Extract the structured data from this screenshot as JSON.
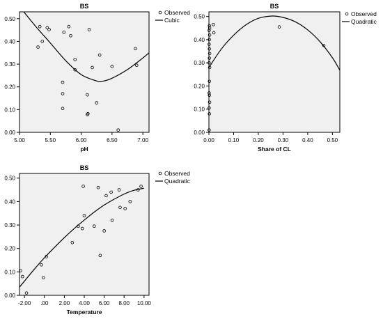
{
  "chart_data": [
    {
      "type": "scatter",
      "title": "BS",
      "xlabel": "pH",
      "ylabel": "",
      "xlim": [
        5.0,
        7.1
      ],
      "ylim": [
        0.0,
        0.53
      ],
      "xticks": [
        "5.00",
        "5.50",
        "6.00",
        "6.50",
        "7.00"
      ],
      "yticks": [
        "0.00",
        "0.10",
        "0.20",
        "0.30",
        "0.40",
        "0.50"
      ],
      "legend": {
        "position": "right",
        "entries": [
          "Observed",
          "Cubic"
        ]
      },
      "fit": {
        "name": "Cubic",
        "points": [
          [
            5.07,
            0.53
          ],
          [
            5.25,
            0.47
          ],
          [
            5.5,
            0.393
          ],
          [
            5.75,
            0.315
          ],
          [
            6.0,
            0.254
          ],
          [
            6.25,
            0.226
          ],
          [
            6.35,
            0.225
          ],
          [
            6.5,
            0.238
          ],
          [
            6.75,
            0.276
          ],
          [
            7.0,
            0.327
          ],
          [
            7.1,
            0.35
          ]
        ]
      },
      "series": [
        {
          "name": "Observed",
          "points": [
            [
              5.3,
              0.375
            ],
            [
              5.33,
              0.465
            ],
            [
              5.37,
              0.4
            ],
            [
              5.45,
              0.46
            ],
            [
              5.48,
              0.452
            ],
            [
              5.7,
              0.22
            ],
            [
              5.7,
              0.17
            ],
            [
              5.7,
              0.105
            ],
            [
              5.72,
              0.44
            ],
            [
              5.8,
              0.465
            ],
            [
              5.83,
              0.425
            ],
            [
              5.9,
              0.275
            ],
            [
              5.9,
              0.32
            ],
            [
              6.1,
              0.165
            ],
            [
              6.1,
              0.078
            ],
            [
              6.11,
              0.082
            ],
            [
              6.13,
              0.452
            ],
            [
              6.18,
              0.285
            ],
            [
              6.25,
              0.13
            ],
            [
              6.3,
              0.34
            ],
            [
              6.5,
              0.29
            ],
            [
              6.6,
              0.01
            ],
            [
              6.88,
              0.368
            ],
            [
              6.9,
              0.295
            ]
          ]
        }
      ]
    },
    {
      "type": "scatter",
      "title": "BS",
      "xlabel": "Share of CL",
      "ylabel": "",
      "xlim": [
        0.0,
        0.53
      ],
      "ylim": [
        0.0,
        0.52
      ],
      "xticks": [
        "0.00",
        "0.10",
        "0.20",
        "0.30",
        "0.40",
        "0.50"
      ],
      "yticks": [
        "0.00",
        "0.10",
        "0.20",
        "0.30",
        "0.40",
        "0.50"
      ],
      "legend": {
        "position": "right",
        "entries": [
          "Observed",
          "Quadratic"
        ]
      },
      "fit": {
        "name": "Quadratic",
        "points": [
          [
            0.0,
            0.28
          ],
          [
            0.05,
            0.359
          ],
          [
            0.1,
            0.419
          ],
          [
            0.15,
            0.464
          ],
          [
            0.2,
            0.492
          ],
          [
            0.255,
            0.502
          ],
          [
            0.3,
            0.496
          ],
          [
            0.35,
            0.477
          ],
          [
            0.4,
            0.442
          ],
          [
            0.45,
            0.391
          ],
          [
            0.5,
            0.322
          ],
          [
            0.53,
            0.268
          ]
        ]
      },
      "series": [
        {
          "name": "Observed",
          "points": [
            [
              0.002,
              0.46
            ],
            [
              0.003,
              0.45
            ],
            [
              0.001,
              0.44
            ],
            [
              0.003,
              0.42
            ],
            [
              0.002,
              0.4
            ],
            [
              0.001,
              0.38
            ],
            [
              0.002,
              0.36
            ],
            [
              0.003,
              0.34
            ],
            [
              0.002,
              0.32
            ],
            [
              0.001,
              0.3
            ],
            [
              0.003,
              0.28
            ],
            [
              0.002,
              0.22
            ],
            [
              0.001,
              0.17
            ],
            [
              0.002,
              0.16
            ],
            [
              0.003,
              0.13
            ],
            [
              0.001,
              0.105
            ],
            [
              0.002,
              0.08
            ],
            [
              0.001,
              0.01
            ],
            [
              0.018,
              0.465
            ],
            [
              0.02,
              0.43
            ],
            [
              0.285,
              0.455
            ],
            [
              0.465,
              0.375
            ]
          ]
        }
      ]
    },
    {
      "type": "scatter",
      "title": "BS",
      "xlabel": "Temperature",
      "ylabel": "",
      "xlim": [
        -2.5,
        10.5
      ],
      "ylim": [
        0.0,
        0.52
      ],
      "xticks": [
        "-2.00",
        ".00",
        "2.00",
        "4.00",
        "6.00",
        "8.00",
        "10.00"
      ],
      "yticks": [
        "0.00",
        "0.10",
        "0.20",
        "0.30",
        "0.40",
        "0.50"
      ],
      "legend": {
        "position": "right",
        "entries": [
          "Observed",
          "Quadratic"
        ]
      },
      "fit": {
        "name": "Quadratic",
        "points": [
          [
            -2.5,
            0.035
          ],
          [
            -1.0,
            0.112
          ],
          [
            0.0,
            0.16
          ],
          [
            1.0,
            0.204
          ],
          [
            2.0,
            0.246
          ],
          [
            3.0,
            0.285
          ],
          [
            4.0,
            0.321
          ],
          [
            5.0,
            0.355
          ],
          [
            6.0,
            0.385
          ],
          [
            7.0,
            0.41
          ],
          [
            8.0,
            0.432
          ],
          [
            9.0,
            0.448
          ],
          [
            10.0,
            0.457
          ]
        ]
      },
      "series": [
        {
          "name": "Observed",
          "points": [
            [
              -2.4,
              0.105
            ],
            [
              -2.2,
              0.08
            ],
            [
              -1.8,
              0.01
            ],
            [
              -0.3,
              0.13
            ],
            [
              -0.1,
              0.075
            ],
            [
              0.2,
              0.165
            ],
            [
              2.8,
              0.225
            ],
            [
              3.4,
              0.295
            ],
            [
              3.8,
              0.285
            ],
            [
              3.9,
              0.465
            ],
            [
              4.0,
              0.34
            ],
            [
              5.0,
              0.295
            ],
            [
              5.4,
              0.46
            ],
            [
              5.6,
              0.17
            ],
            [
              6.0,
              0.275
            ],
            [
              6.2,
              0.425
            ],
            [
              6.7,
              0.44
            ],
            [
              6.8,
              0.32
            ],
            [
              7.5,
              0.45
            ],
            [
              7.6,
              0.375
            ],
            [
              8.1,
              0.37
            ],
            [
              8.6,
              0.4
            ],
            [
              9.4,
              0.45
            ],
            [
              9.7,
              0.465
            ]
          ]
        }
      ]
    }
  ]
}
